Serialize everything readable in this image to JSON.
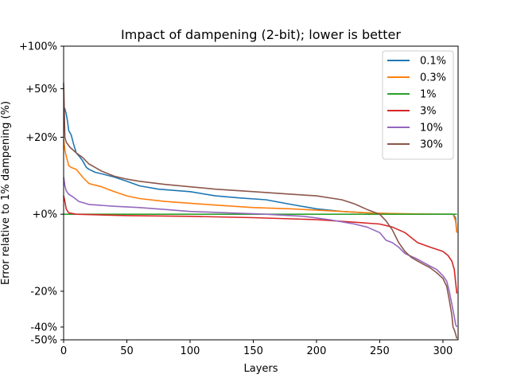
{
  "chart_data": {
    "type": "line",
    "title": "Impact of dampening (2-bit); lower is better",
    "xlabel": "Layers",
    "ylabel": "Error relative to 1% dampening (%)",
    "xlim": [
      0,
      312
    ],
    "ylim": [
      -50,
      100
    ],
    "y_scale": "symlog",
    "grid": false,
    "legend_position": "top-right",
    "x_ticks": [
      0,
      50,
      100,
      150,
      200,
      250,
      300
    ],
    "x_tick_labels": [
      "0",
      "50",
      "100",
      "150",
      "200",
      "250",
      "300"
    ],
    "y_ticks": [
      -50,
      -40,
      -20,
      0,
      20,
      50,
      100
    ],
    "y_tick_labels": [
      "-50%",
      "-40%",
      "-20%",
      "+0%",
      "+20%",
      "+50%",
      "+100%"
    ],
    "series": [
      {
        "name": "0.1%",
        "color": "#1f77b4",
        "points": [
          [
            0,
            36
          ],
          [
            1,
            35
          ],
          [
            2,
            32
          ],
          [
            3,
            28
          ],
          [
            4,
            23
          ],
          [
            6,
            21
          ],
          [
            8,
            17
          ],
          [
            10,
            14
          ],
          [
            12,
            13
          ],
          [
            15,
            11.5
          ],
          [
            18,
            9.5
          ],
          [
            20,
            9
          ],
          [
            25,
            8.2
          ],
          [
            30,
            7.8
          ],
          [
            40,
            7
          ],
          [
            50,
            6
          ],
          [
            60,
            5
          ],
          [
            75,
            4.3
          ],
          [
            90,
            4
          ],
          [
            100,
            3.8
          ],
          [
            120,
            3
          ],
          [
            140,
            2.6
          ],
          [
            160,
            2.3
          ],
          [
            180,
            1.5
          ],
          [
            200,
            0.8
          ],
          [
            220,
            0.4
          ],
          [
            240,
            0.2
          ],
          [
            250,
            0.1
          ],
          [
            260,
            0
          ],
          [
            280,
            0
          ],
          [
            300,
            0
          ],
          [
            308,
            0
          ],
          [
            310,
            -0.5
          ],
          [
            311,
            -3
          ]
        ]
      },
      {
        "name": "0.3%",
        "color": "#ff7f0e",
        "points": [
          [
            0,
            19
          ],
          [
            1,
            15
          ],
          [
            2,
            13
          ],
          [
            4,
            10
          ],
          [
            6,
            9.5
          ],
          [
            10,
            9
          ],
          [
            15,
            7
          ],
          [
            20,
            5.5
          ],
          [
            30,
            4.8
          ],
          [
            40,
            3.8
          ],
          [
            50,
            3
          ],
          [
            60,
            2.5
          ],
          [
            80,
            2
          ],
          [
            100,
            1.7
          ],
          [
            120,
            1.4
          ],
          [
            150,
            1
          ],
          [
            180,
            0.8
          ],
          [
            200,
            0.6
          ],
          [
            220,
            0.4
          ],
          [
            240,
            0.2
          ],
          [
            260,
            0.1
          ],
          [
            280,
            0.05
          ],
          [
            300,
            0
          ],
          [
            308,
            0
          ],
          [
            310,
            -1
          ],
          [
            311,
            -3
          ]
        ]
      },
      {
        "name": "1%",
        "color": "#2ca02c",
        "points": [
          [
            0,
            0
          ],
          [
            311,
            0
          ]
        ]
      },
      {
        "name": "3%",
        "color": "#d62728",
        "points": [
          [
            0,
            3
          ],
          [
            1,
            2
          ],
          [
            2,
            0.8
          ],
          [
            4,
            0.2
          ],
          [
            10,
            0
          ],
          [
            50,
            -0.2
          ],
          [
            100,
            -0.3
          ],
          [
            150,
            -0.5
          ],
          [
            200,
            -0.8
          ],
          [
            230,
            -1.2
          ],
          [
            250,
            -1.5
          ],
          [
            260,
            -2
          ],
          [
            270,
            -3
          ],
          [
            280,
            -5
          ],
          [
            290,
            -6
          ],
          [
            300,
            -7
          ],
          [
            304,
            -8
          ],
          [
            307,
            -9.5
          ],
          [
            309,
            -12
          ],
          [
            311,
            -21
          ]
        ]
      },
      {
        "name": "10%",
        "color": "#9467bd",
        "points": [
          [
            0,
            7
          ],
          [
            1,
            5
          ],
          [
            2,
            4
          ],
          [
            4,
            3.3
          ],
          [
            8,
            2.7
          ],
          [
            12,
            2
          ],
          [
            20,
            1.5
          ],
          [
            40,
            1.2
          ],
          [
            60,
            1
          ],
          [
            80,
            0.7
          ],
          [
            100,
            0.4
          ],
          [
            130,
            0.2
          ],
          [
            160,
            0
          ],
          [
            190,
            -0.3
          ],
          [
            210,
            -0.8
          ],
          [
            230,
            -1.5
          ],
          [
            240,
            -2
          ],
          [
            250,
            -3
          ],
          [
            255,
            -4.5
          ],
          [
            260,
            -5
          ],
          [
            265,
            -6
          ],
          [
            270,
            -7.5
          ],
          [
            280,
            -9
          ],
          [
            285,
            -10
          ],
          [
            290,
            -11
          ],
          [
            295,
            -12
          ],
          [
            300,
            -14
          ],
          [
            303,
            -16
          ],
          [
            305,
            -20
          ],
          [
            307,
            -26
          ],
          [
            309,
            -33
          ],
          [
            310,
            -38
          ],
          [
            311,
            -40
          ]
        ]
      },
      {
        "name": "30%",
        "color": "#8c564b",
        "points": [
          [
            0,
            55
          ],
          [
            1,
            20
          ],
          [
            2,
            18
          ],
          [
            5,
            16
          ],
          [
            10,
            14
          ],
          [
            15,
            12.5
          ],
          [
            20,
            10.5
          ],
          [
            25,
            9.5
          ],
          [
            30,
            8.5
          ],
          [
            40,
            7.2
          ],
          [
            50,
            6.5
          ],
          [
            60,
            6
          ],
          [
            80,
            5.3
          ],
          [
            100,
            4.8
          ],
          [
            120,
            4.3
          ],
          [
            150,
            3.8
          ],
          [
            180,
            3.3
          ],
          [
            200,
            3
          ],
          [
            220,
            2.3
          ],
          [
            230,
            1.6
          ],
          [
            240,
            0.7
          ],
          [
            250,
            0
          ],
          [
            255,
            -1
          ],
          [
            260,
            -2.5
          ],
          [
            265,
            -5
          ],
          [
            270,
            -7
          ],
          [
            275,
            -8.5
          ],
          [
            280,
            -9.5
          ],
          [
            285,
            -10.5
          ],
          [
            290,
            -11.5
          ],
          [
            295,
            -13
          ],
          [
            300,
            -15
          ],
          [
            303,
            -18
          ],
          [
            305,
            -24
          ],
          [
            307,
            -32
          ],
          [
            308,
            -40
          ],
          [
            309,
            -42
          ],
          [
            310,
            -45
          ],
          [
            311,
            -49
          ]
        ]
      }
    ]
  }
}
